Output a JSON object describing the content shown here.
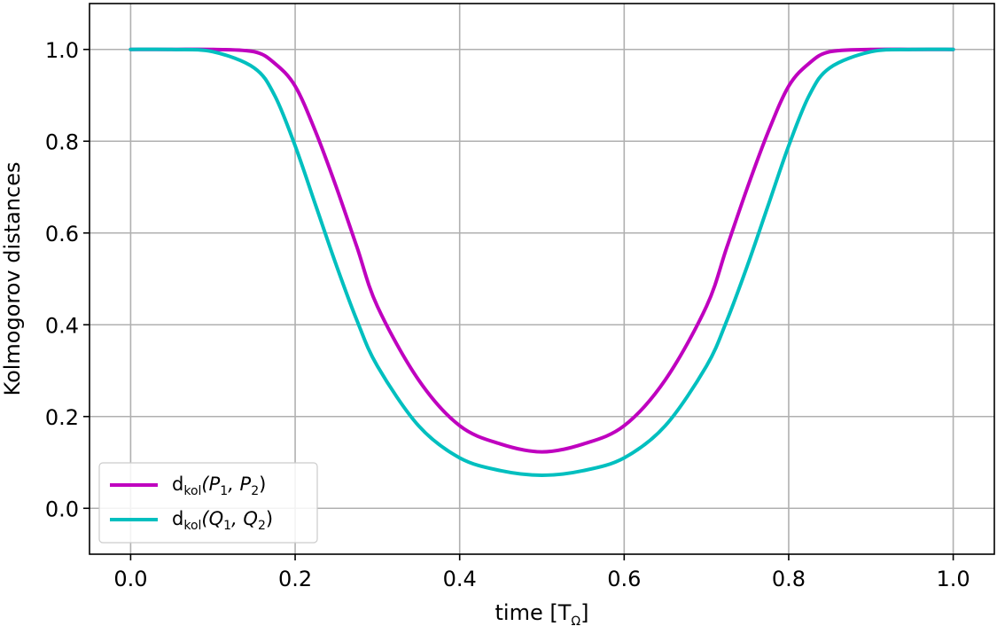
{
  "chart_data": {
    "type": "line",
    "xlabel": "time [T",
    "xlabel_sub": "Ω",
    "xlabel_suffix": "]",
    "ylabel": "Kolmogorov distances",
    "xlim": [
      -0.05,
      1.05
    ],
    "ylim": [
      -0.1,
      1.1
    ],
    "xticks": [
      0.0,
      0.2,
      0.4,
      0.6,
      0.8,
      1.0
    ],
    "xtick_labels": [
      "0.0",
      "0.2",
      "0.4",
      "0.6",
      "0.8",
      "1.0"
    ],
    "yticks": [
      0.0,
      0.2,
      0.4,
      0.6,
      0.8,
      1.0
    ],
    "ytick_labels": [
      "0.0",
      "0.2",
      "0.4",
      "0.6",
      "0.8",
      "1.0"
    ],
    "grid": true,
    "legend_position": "lower-left",
    "x": [
      0.0,
      0.05,
      0.1,
      0.15,
      0.175,
      0.2,
      0.225,
      0.25,
      0.275,
      0.3,
      0.35,
      0.4,
      0.45,
      0.5,
      0.55,
      0.6,
      0.65,
      0.7,
      0.725,
      0.75,
      0.775,
      0.8,
      0.825,
      0.85,
      0.9,
      0.95,
      1.0
    ],
    "series": [
      {
        "name": "d",
        "name_sub": "kol",
        "name_args": "(P",
        "name_arg1_sub": "1",
        "name_sep": ", P",
        "name_arg2_sub": "2",
        "name_close": ")",
        "color": "#bf00bf",
        "values": [
          1.0,
          1.0,
          1.0,
          0.995,
          0.97,
          0.92,
          0.82,
          0.7,
          0.57,
          0.44,
          0.28,
          0.18,
          0.14,
          0.123,
          0.14,
          0.18,
          0.28,
          0.44,
          0.57,
          0.7,
          0.82,
          0.92,
          0.97,
          0.995,
          1.0,
          1.0,
          1.0
        ]
      },
      {
        "name": "d",
        "name_sub": "kol",
        "name_args": "(Q",
        "name_arg1_sub": "1",
        "name_sep": ", Q",
        "name_arg2_sub": "2",
        "name_close": ")",
        "color": "#00bfbf",
        "values": [
          1.0,
          1.0,
          0.995,
          0.96,
          0.9,
          0.79,
          0.66,
          0.53,
          0.41,
          0.31,
          0.18,
          0.11,
          0.082,
          0.072,
          0.082,
          0.11,
          0.18,
          0.31,
          0.41,
          0.53,
          0.66,
          0.79,
          0.9,
          0.96,
          0.995,
          1.0,
          1.0
        ]
      }
    ]
  }
}
